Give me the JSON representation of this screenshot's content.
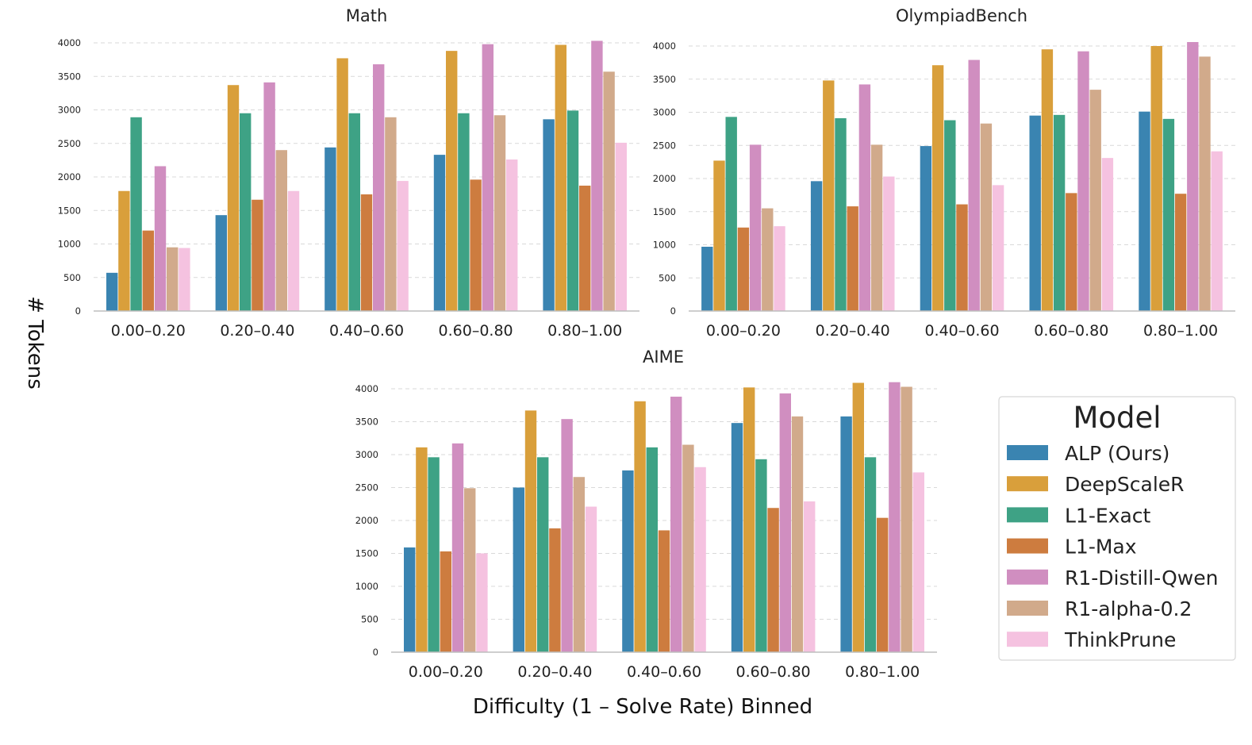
{
  "figure": {
    "ylabel": "# Tokens",
    "xlabel": "Difficulty (1 – Solve Rate) Binned"
  },
  "legend": {
    "title": "Model",
    "placement": "bottom-right"
  },
  "colors": {
    "ALP (Ours)": "#3a84b1",
    "DeepScaleR": "#d99f3b",
    "L1-Exact": "#3ea285",
    "L1-Max": "#cd7c3f",
    "R1-Distill-Qwen": "#d08ec0",
    "R1-alpha-0.2": "#d1aa8b",
    "ThinkPrune": "#f5c2e0"
  },
  "chart_data": [
    {
      "type": "bar",
      "title": "Math",
      "categories": [
        "0.00–0.20",
        "0.20–0.40",
        "0.40–0.60",
        "0.60–0.80",
        "0.80–1.00"
      ],
      "ylim": [
        0,
        4000
      ],
      "yticks": [
        "0",
        "500",
        "1000",
        "1500",
        "2000",
        "2500",
        "3000",
        "3500",
        "4000"
      ],
      "grid": true,
      "series": [
        {
          "name": "ALP (Ours)",
          "values": [
            570,
            1430,
            2440,
            2330,
            2860
          ]
        },
        {
          "name": "DeepScaleR",
          "values": [
            1790,
            3370,
            3770,
            3880,
            3970
          ]
        },
        {
          "name": "L1-Exact",
          "values": [
            2890,
            2950,
            2950,
            2950,
            2990
          ]
        },
        {
          "name": "L1-Max",
          "values": [
            1200,
            1660,
            1740,
            1960,
            1870
          ]
        },
        {
          "name": "R1-Distill-Qwen",
          "values": [
            2160,
            3410,
            3680,
            3980,
            4030
          ]
        },
        {
          "name": "R1-alpha-0.2",
          "values": [
            950,
            2400,
            2890,
            2920,
            3570
          ]
        },
        {
          "name": "ThinkPrune",
          "values": [
            940,
            1790,
            1940,
            2260,
            2510
          ]
        }
      ]
    },
    {
      "type": "bar",
      "title": "OlympiadBench",
      "categories": [
        "0.00–0.20",
        "0.20–0.40",
        "0.40–0.60",
        "0.60–0.80",
        "0.80–1.00"
      ],
      "ylim": [
        0,
        4000
      ],
      "yticks": [
        "0",
        "500",
        "1000",
        "1500",
        "2000",
        "2500",
        "3000",
        "3500",
        "4000"
      ],
      "grid": true,
      "series": [
        {
          "name": "ALP (Ours)",
          "values": [
            970,
            1960,
            2490,
            2950,
            3010
          ]
        },
        {
          "name": "DeepScaleR",
          "values": [
            2270,
            3480,
            3710,
            3950,
            4000
          ]
        },
        {
          "name": "L1-Exact",
          "values": [
            2930,
            2910,
            2880,
            2960,
            2900
          ]
        },
        {
          "name": "L1-Max",
          "values": [
            1260,
            1580,
            1610,
            1780,
            1770
          ]
        },
        {
          "name": "R1-Distill-Qwen",
          "values": [
            2510,
            3420,
            3790,
            3920,
            4060
          ]
        },
        {
          "name": "R1-alpha-0.2",
          "values": [
            1550,
            2510,
            2830,
            3340,
            3840
          ]
        },
        {
          "name": "ThinkPrune",
          "values": [
            1280,
            2030,
            1900,
            2310,
            2410
          ]
        }
      ]
    },
    {
      "type": "bar",
      "title": "AIME",
      "categories": [
        "0.00–0.20",
        "0.20–0.40",
        "0.40–0.60",
        "0.60–0.80",
        "0.80–1.00"
      ],
      "ylim": [
        0,
        4000
      ],
      "yticks": [
        "0",
        "500",
        "1000",
        "1500",
        "2000",
        "2500",
        "3000",
        "3500",
        "4000"
      ],
      "grid": true,
      "series": [
        {
          "name": "ALP (Ours)",
          "values": [
            1590,
            2500,
            2760,
            3480,
            3580
          ]
        },
        {
          "name": "DeepScaleR",
          "values": [
            3110,
            3670,
            3810,
            4020,
            4090
          ]
        },
        {
          "name": "L1-Exact",
          "values": [
            2960,
            2960,
            3110,
            2930,
            2960
          ]
        },
        {
          "name": "L1-Max",
          "values": [
            1530,
            1880,
            1850,
            2190,
            2040
          ]
        },
        {
          "name": "R1-Distill-Qwen",
          "values": [
            3170,
            3540,
            3880,
            3930,
            4100
          ]
        },
        {
          "name": "R1-alpha-0.2",
          "values": [
            2490,
            2660,
            3150,
            3580,
            4030
          ]
        },
        {
          "name": "ThinkPrune",
          "values": [
            1500,
            2210,
            2810,
            2290,
            2730
          ]
        }
      ]
    }
  ]
}
